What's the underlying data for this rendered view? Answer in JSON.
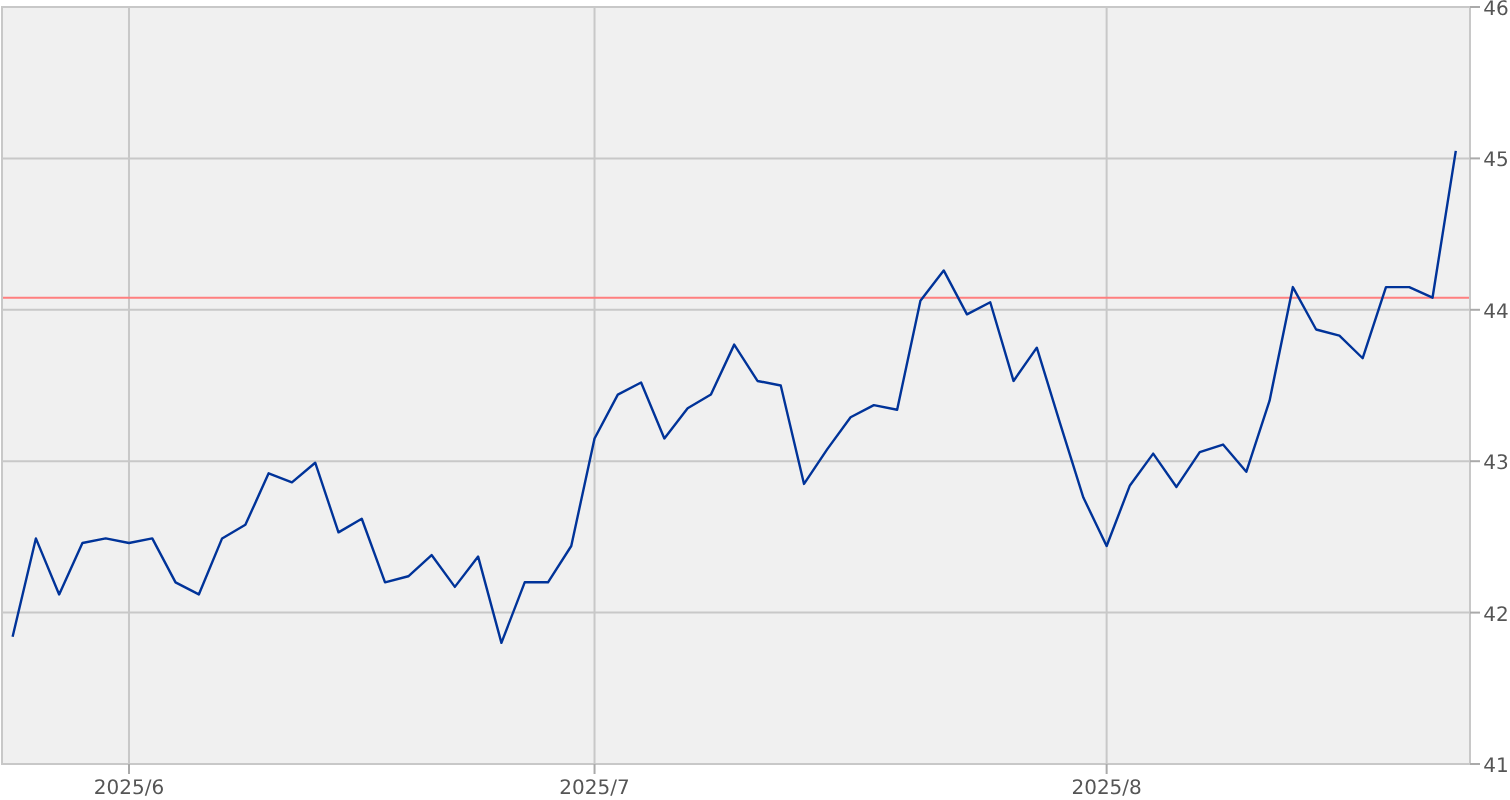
{
  "chart_data": {
    "type": "line",
    "categories": [
      null,
      null,
      null,
      null,
      null,
      "2025/6",
      null,
      null,
      null,
      null,
      null,
      null,
      null,
      null,
      null,
      null,
      null,
      null,
      null,
      null,
      null,
      null,
      null,
      null,
      null,
      "2025/7",
      null,
      null,
      null,
      null,
      null,
      null,
      null,
      null,
      null,
      null,
      null,
      null,
      null,
      null,
      null,
      null,
      null,
      null,
      null,
      null,
      null,
      "2025/8",
      null,
      null,
      null,
      null,
      null,
      null,
      null,
      null,
      null,
      null,
      null,
      null,
      null,
      null,
      null
    ],
    "series": [
      {
        "color": "#003399",
        "values": [
          41.84,
          42.49,
          42.12,
          42.46,
          42.49,
          42.46,
          42.49,
          42.2,
          42.12,
          42.49,
          42.58,
          42.92,
          42.86,
          42.99,
          42.53,
          42.62,
          42.2,
          42.24,
          42.38,
          42.17,
          42.37,
          41.8,
          42.2,
          42.2,
          42.44,
          43.15,
          43.44,
          43.52,
          43.15,
          43.35,
          43.44,
          43.77,
          43.53,
          43.5,
          42.85,
          43.08,
          43.29,
          43.37,
          43.34,
          44.06,
          44.26,
          43.97,
          44.05,
          43.53,
          43.75,
          43.25,
          42.76,
          42.44,
          42.84,
          43.05,
          42.83,
          43.06,
          43.11,
          42.93,
          43.4,
          44.15,
          43.87,
          43.83,
          43.68,
          44.15,
          44.15,
          44.08,
          45.05
        ]
      }
    ],
    "ylim": [
      41,
      46
    ],
    "yticks": [
      41,
      42,
      43,
      44,
      45,
      46
    ],
    "grid": true,
    "marker": "none",
    "line_style": "solid",
    "ref_lines": [
      {
        "axis": "y",
        "value": 44.08,
        "color": "#ff7f7f"
      }
    ]
  }
}
